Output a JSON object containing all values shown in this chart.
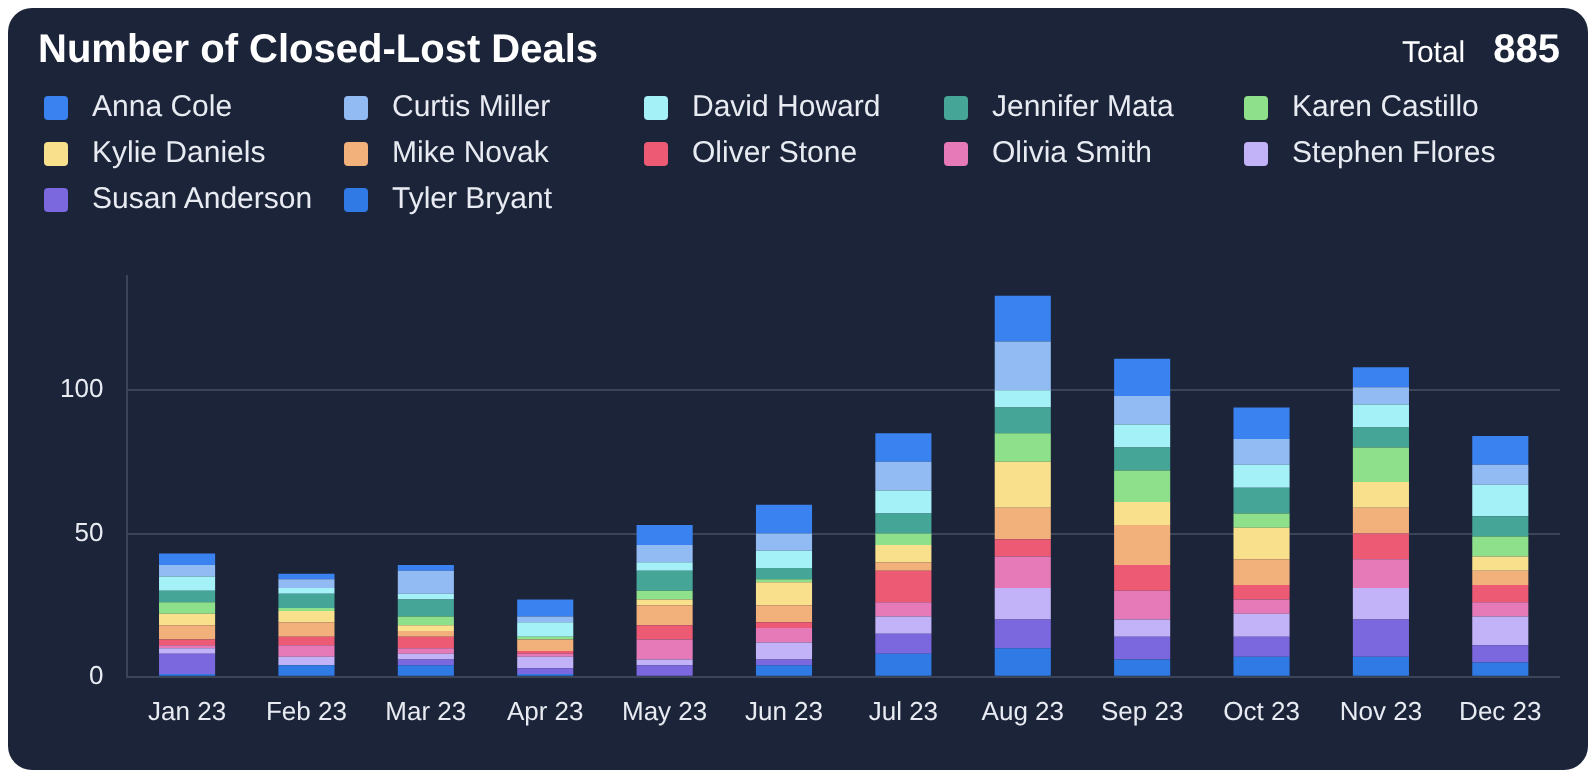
{
  "chart_data": {
    "type": "bar",
    "title": "Number of Closed-Lost Deals",
    "annotations": [
      "Total",
      "885"
    ],
    "categories": [
      "Jan 23",
      "Feb 23",
      "Mar 23",
      "Apr 23",
      "May 23",
      "Jun 23",
      "Jul 23",
      "Aug 23",
      "Sep 23",
      "Oct 23",
      "Nov 23",
      "Dec 23"
    ],
    "stacked": true,
    "ylim": [
      0,
      140
    ],
    "yticks": [
      0,
      50,
      100
    ],
    "grid": "y",
    "legend": "top",
    "series": [
      {
        "name": "Tyler Bryant",
        "color": "#2f7ae5",
        "values": [
          1,
          4,
          4,
          1,
          0,
          4,
          8,
          10,
          6,
          7,
          7,
          5
        ]
      },
      {
        "name": "Susan Anderson",
        "color": "#7b68de",
        "values": [
          7,
          0,
          2,
          2,
          4,
          2,
          7,
          10,
          8,
          7,
          13,
          6
        ]
      },
      {
        "name": "Stephen Flores",
        "color": "#c2b2f8",
        "values": [
          2,
          3,
          2,
          4,
          2,
          6,
          6,
          11,
          6,
          8,
          11,
          10
        ]
      },
      {
        "name": "Olivia Smith",
        "color": "#e67ab9",
        "values": [
          1,
          4,
          2,
          1,
          7,
          5,
          5,
          11,
          10,
          5,
          10,
          5
        ]
      },
      {
        "name": "Oliver Stone",
        "color": "#ec5a74",
        "values": [
          2,
          3,
          4,
          1,
          5,
          2,
          11,
          6,
          9,
          5,
          9,
          6
        ]
      },
      {
        "name": "Mike Novak",
        "color": "#f2b07a",
        "values": [
          5,
          5,
          2,
          4,
          7,
          6,
          3,
          11,
          14,
          9,
          9,
          5
        ]
      },
      {
        "name": "Kylie Daniels",
        "color": "#f8e08c",
        "values": [
          4,
          4,
          2,
          0,
          2,
          8,
          6,
          16,
          8,
          11,
          9,
          5
        ]
      },
      {
        "name": "Karen Castillo",
        "color": "#8ee08a",
        "values": [
          4,
          1,
          3,
          1,
          3,
          1,
          4,
          10,
          11,
          5,
          12,
          7
        ]
      },
      {
        "name": "Jennifer Mata",
        "color": "#45a596",
        "values": [
          4,
          5,
          6,
          0,
          7,
          4,
          7,
          9,
          8,
          9,
          7,
          7
        ]
      },
      {
        "name": "David Howard",
        "color": "#a5f1f8",
        "values": [
          5,
          2,
          2,
          5,
          3,
          6,
          8,
          6,
          8,
          8,
          8,
          11
        ]
      },
      {
        "name": "Curtis Miller",
        "color": "#93bbf3",
        "values": [
          4,
          3,
          8,
          2,
          6,
          6,
          10,
          17,
          10,
          9,
          6,
          7
        ]
      },
      {
        "name": "Anna Cole",
        "color": "#3a82f0",
        "values": [
          4,
          2,
          2,
          6,
          7,
          10,
          10,
          16,
          13,
          11,
          7,
          10
        ]
      }
    ]
  }
}
